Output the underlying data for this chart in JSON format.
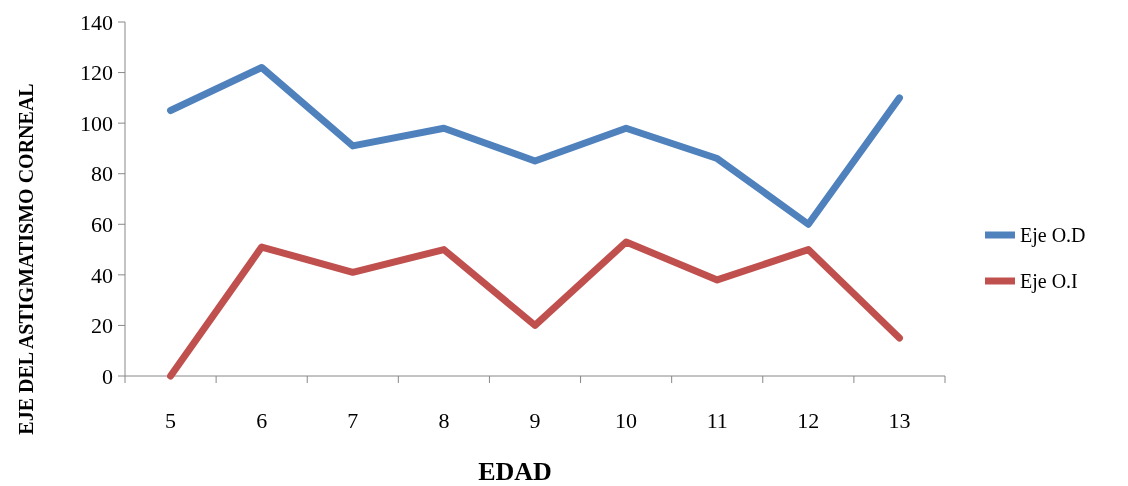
{
  "chart_data": {
    "type": "line",
    "xlabel": "EDAD",
    "ylabel": "EJE DEL ASTIGMATISMO CORNEAL",
    "categories": [
      "5",
      "6",
      "7",
      "8",
      "9",
      "10",
      "11",
      "12",
      "13"
    ],
    "series": [
      {
        "name": "Eje O.D",
        "color": "#4f81bd",
        "values": [
          105,
          122,
          91,
          98,
          85,
          98,
          86,
          60,
          110
        ]
      },
      {
        "name": "Eje O.I",
        "color": "#c0504d",
        "values": [
          0,
          51,
          41,
          50,
          20,
          53,
          38,
          50,
          15
        ]
      }
    ],
    "ylim": [
      0,
      140
    ],
    "yticks": [
      0,
      20,
      40,
      60,
      80,
      100,
      120,
      140
    ],
    "grid": false,
    "legend": "right",
    "line_style": "solid"
  }
}
